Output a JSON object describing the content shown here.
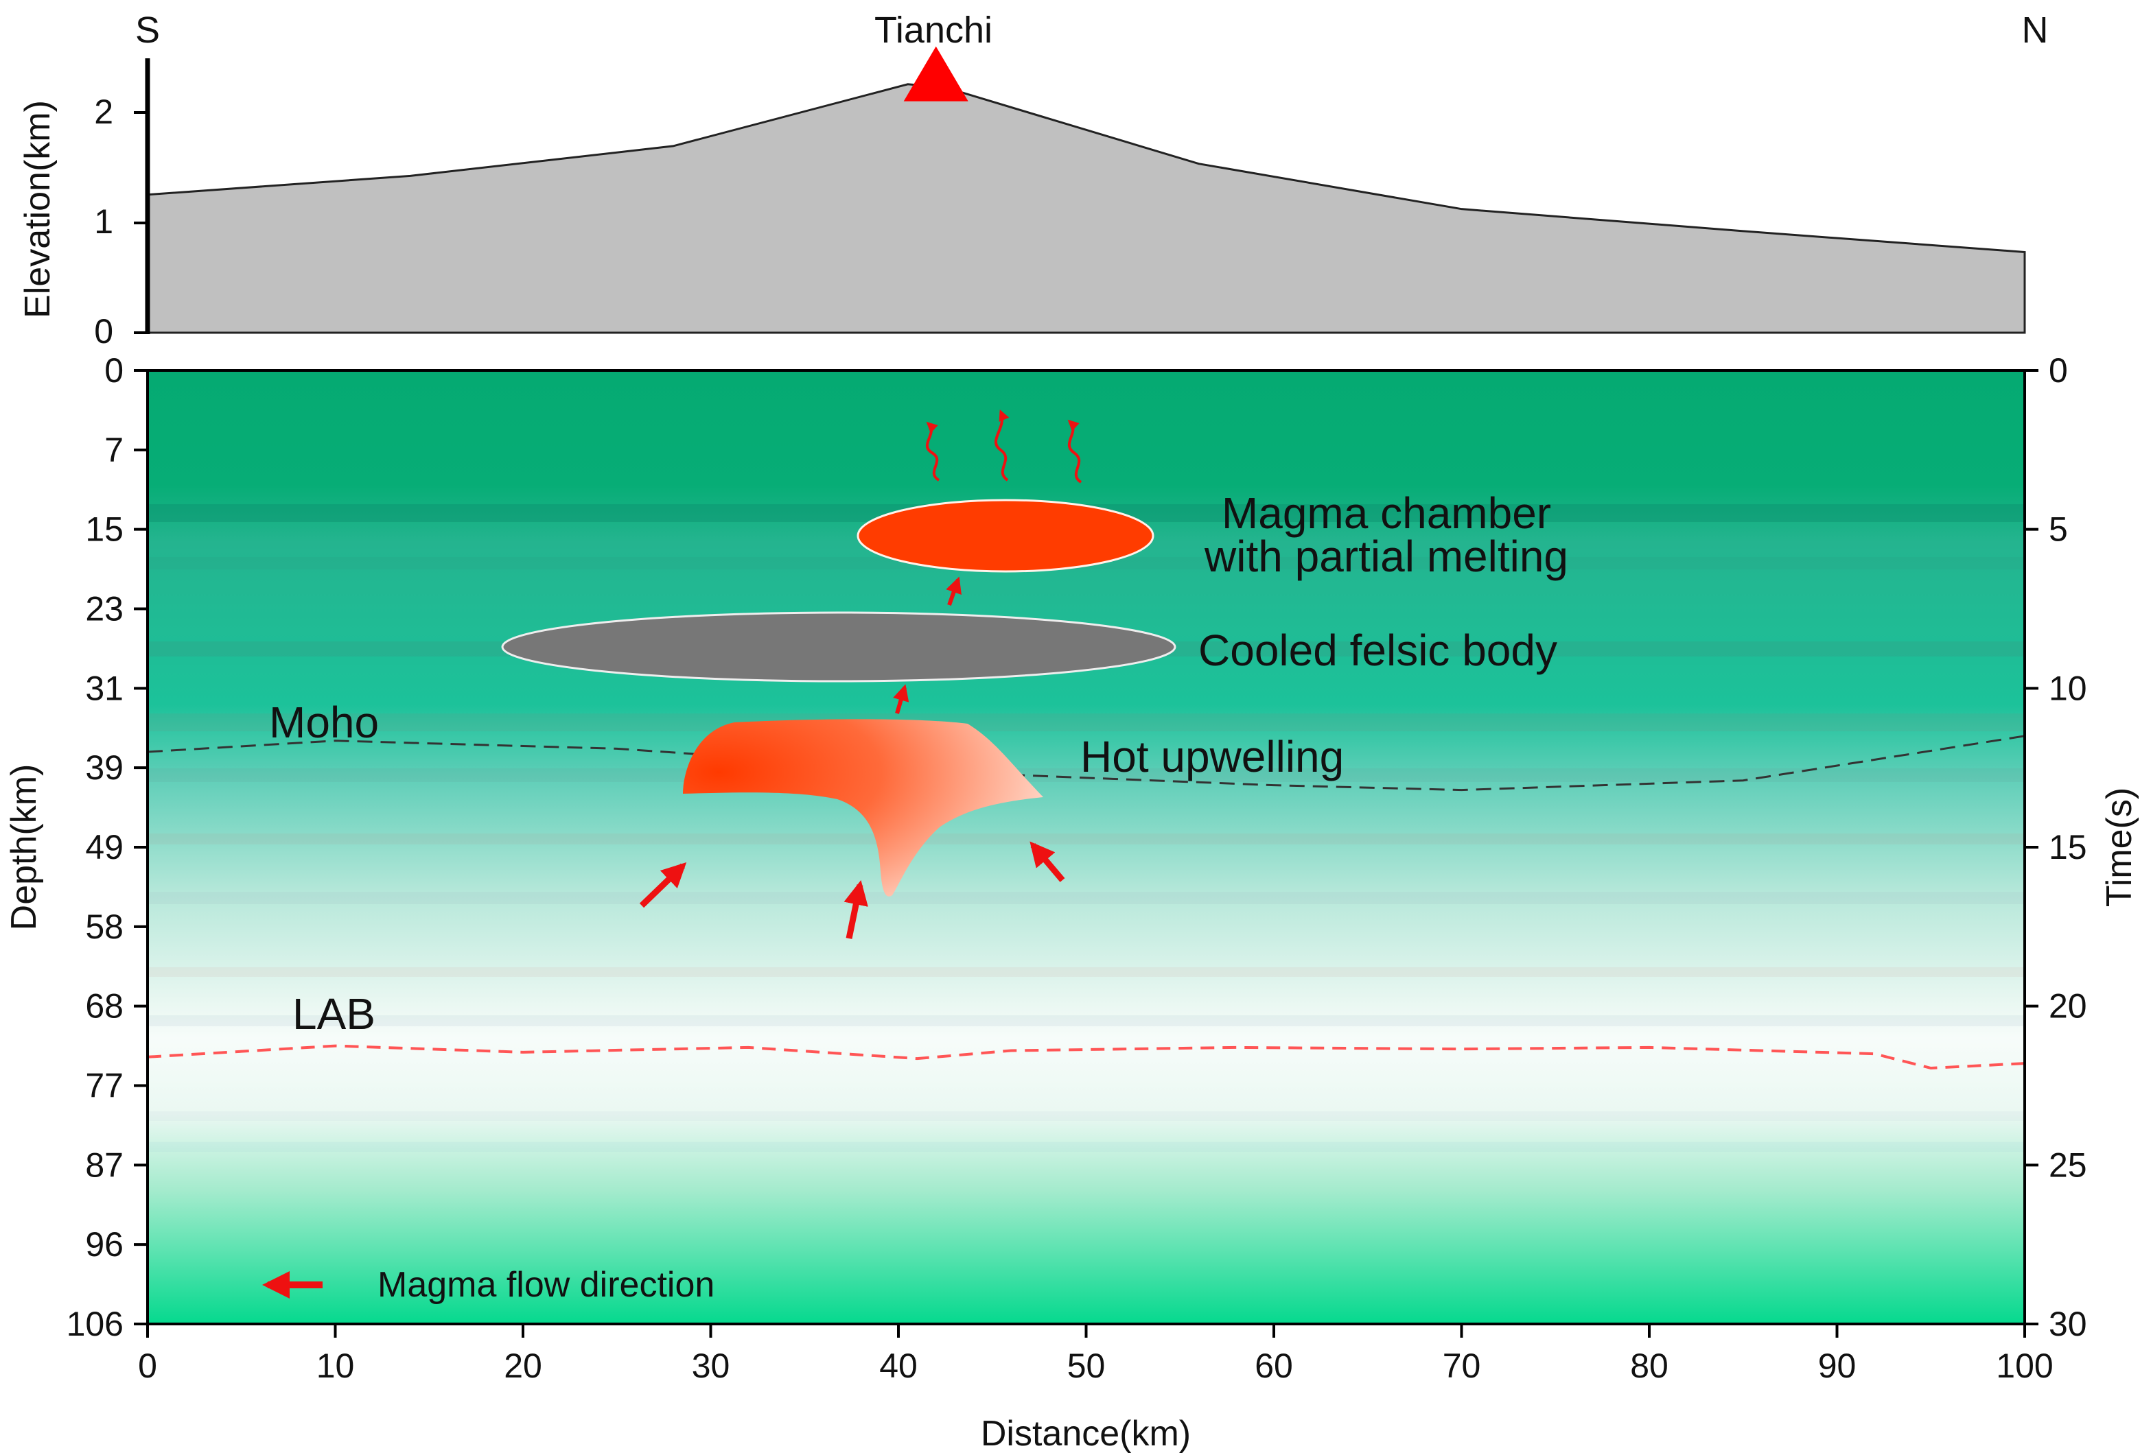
{
  "header": {
    "south_label": "S",
    "north_label": "N",
    "volcano_label": "Tianchi"
  },
  "elevation_panel": {
    "ylabel": "Elevation(km)",
    "ytick_labels": [
      "0",
      "1",
      "2"
    ],
    "ylim": [
      0,
      2.5
    ],
    "profile_points": [
      {
        "distance_km": 0,
        "elevation_km": 1.25
      },
      {
        "distance_km": 14,
        "elevation_km": 1.42
      },
      {
        "distance_km": 28,
        "elevation_km": 1.69
      },
      {
        "distance_km": 40.5,
        "elevation_km": 2.25
      },
      {
        "distance_km": 42.5,
        "elevation_km": 2.22
      },
      {
        "distance_km": 56,
        "elevation_km": 1.53
      },
      {
        "distance_km": 70,
        "elevation_km": 1.12
      },
      {
        "distance_km": 85,
        "elevation_km": 0.92
      },
      {
        "distance_km": 100,
        "elevation_km": 0.73
      }
    ],
    "volcano_distance_km": 42,
    "fill_color": "#c0c0c0",
    "volcano_color": "#ff0000"
  },
  "section_panel": {
    "xlabel": "Distance(km)",
    "ylabel_left": "Depth(km)",
    "ylabel_right": "Time(s)",
    "xlim": [
      0,
      100
    ],
    "xtick_labels": [
      "0",
      "10",
      "20",
      "30",
      "40",
      "50",
      "60",
      "70",
      "80",
      "90",
      "100"
    ],
    "depth_tick_labels": [
      "0",
      "7",
      "15",
      "23",
      "31",
      "39",
      "49",
      "58",
      "68",
      "77",
      "87",
      "96",
      "106"
    ],
    "time_tick_labels": [
      "0",
      "5",
      "10",
      "15",
      "20",
      "25",
      "30"
    ],
    "time_lim_s": [
      0,
      30
    ],
    "colors": {
      "top_green": "#05aa72",
      "mid_teal": "#3cc5a8",
      "pale": "#f2faf6",
      "bottom_green": "#05d98e",
      "magma": "#ff3c00",
      "felsic": "#777777",
      "arrow": "#ee1111"
    }
  },
  "annotations": {
    "magma_chamber_line1": "Magma chamber",
    "magma_chamber_line2": "with partial melting",
    "cooled_felsic": "Cooled felsic body",
    "moho": "Moho",
    "hot_upwelling": "Hot upwelling",
    "lab": "LAB"
  },
  "interfaces": {
    "moho_time_s": [
      {
        "distance_km": 0,
        "time_s": 12.0
      },
      {
        "distance_km": 10,
        "time_s": 11.65
      },
      {
        "distance_km": 25,
        "time_s": 11.9
      },
      {
        "distance_km": 45,
        "time_s": 12.7
      },
      {
        "distance_km": 60,
        "time_s": 13.05
      },
      {
        "distance_km": 70,
        "time_s": 13.2
      },
      {
        "distance_km": 85,
        "time_s": 12.9
      },
      {
        "distance_km": 100,
        "time_s": 11.5
      }
    ],
    "lab_time_s": [
      {
        "distance_km": 0,
        "time_s": 21.6
      },
      {
        "distance_km": 10,
        "time_s": 21.25
      },
      {
        "distance_km": 20,
        "time_s": 21.45
      },
      {
        "distance_km": 32,
        "time_s": 21.3
      },
      {
        "distance_km": 41,
        "time_s": 21.65
      },
      {
        "distance_km": 46,
        "time_s": 21.4
      },
      {
        "distance_km": 58,
        "time_s": 21.3
      },
      {
        "distance_km": 70,
        "time_s": 21.35
      },
      {
        "distance_km": 80,
        "time_s": 21.3
      },
      {
        "distance_km": 92,
        "time_s": 21.5
      },
      {
        "distance_km": 95,
        "time_s": 21.95
      },
      {
        "distance_km": 100,
        "time_s": 21.8
      }
    ]
  },
  "legend": {
    "label": "Magma flow direction"
  }
}
